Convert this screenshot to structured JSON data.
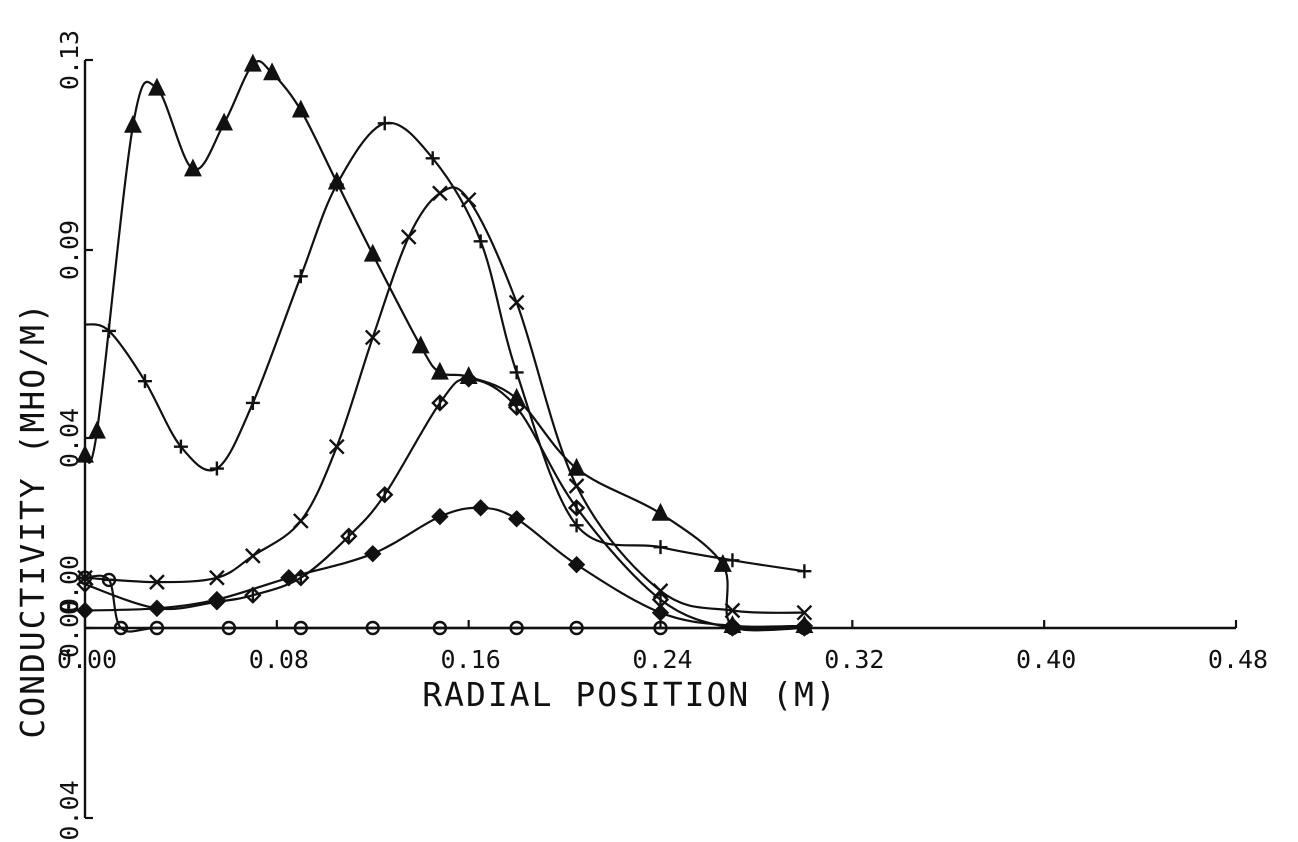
{
  "chart_data": {
    "type": "line",
    "title": "",
    "xlabel": "RADIAL POSITION (M)",
    "ylabel": "CONDUCTIVITY (MHO/M)",
    "xlim": [
      0.0,
      0.48
    ],
    "ylim": [
      -0.04,
      0.13
    ],
    "xticks": [
      "0.00",
      "0.08",
      "0.16",
      "0.24",
      "0.32",
      "0.40",
      "0.48"
    ],
    "yticks": [
      "-0.04",
      "0.00",
      "0.04",
      "0.04",
      "0.09",
      "0.13"
    ],
    "legend": "none",
    "grid": false,
    "series": [
      {
        "marker": "triangle",
        "x": [
          0.0,
          0.005,
          0.02,
          0.03,
          0.045,
          0.058,
          0.07,
          0.078,
          0.09,
          0.105,
          0.12,
          0.14,
          0.148,
          0.16,
          0.18,
          0.205,
          0.24,
          0.266,
          0.27,
          0.3
        ],
        "y": [
          0.0395,
          0.045,
          0.115,
          0.1235,
          0.105,
          0.1155,
          0.129,
          0.127,
          0.1185,
          0.102,
          0.0855,
          0.0645,
          0.0585,
          0.0575,
          0.0525,
          0.0365,
          0.0262,
          0.0145,
          0.0005,
          0.0005
        ]
      },
      {
        "marker": "plus",
        "x": [
          0.0,
          0.01,
          0.025,
          0.04,
          0.055,
          0.07,
          0.09,
          0.105,
          0.125,
          0.145,
          0.165,
          0.18,
          0.205,
          0.24,
          0.27,
          0.3
        ],
        "y": [
          0.0695,
          0.068,
          0.0565,
          0.0415,
          0.0365,
          0.0515,
          0.0805,
          0.1015,
          0.1155,
          0.1075,
          0.0885,
          0.0585,
          0.0235,
          0.0185,
          0.0155,
          0.013
        ]
      },
      {
        "marker": "x",
        "x": [
          0.0,
          0.03,
          0.055,
          0.07,
          0.09,
          0.105,
          0.12,
          0.135,
          0.148,
          0.16,
          0.18,
          0.205,
          0.24,
          0.27,
          0.3
        ],
        "y": [
          0.0115,
          0.0105,
          0.0115,
          0.0165,
          0.0245,
          0.0415,
          0.0665,
          0.0895,
          0.0995,
          0.098,
          0.0745,
          0.0325,
          0.0085,
          0.004,
          0.0035
        ]
      },
      {
        "marker": "diamond-cross",
        "x": [
          0.0,
          0.03,
          0.055,
          0.07,
          0.09,
          0.11,
          0.125,
          0.148,
          0.16,
          0.18,
          0.205,
          0.24,
          0.27,
          0.3
        ],
        "y": [
          0.01,
          0.0045,
          0.006,
          0.0075,
          0.0115,
          0.021,
          0.0305,
          0.0515,
          0.057,
          0.0505,
          0.0275,
          0.0065,
          0.0,
          0.0
        ]
      },
      {
        "marker": "diamond",
        "x": [
          0.0,
          0.03,
          0.055,
          0.085,
          0.12,
          0.148,
          0.165,
          0.18,
          0.205,
          0.24,
          0.27,
          0.3
        ],
        "y": [
          0.004,
          0.0045,
          0.0065,
          0.0115,
          0.017,
          0.0255,
          0.0275,
          0.025,
          0.0145,
          0.0035,
          0.0005,
          0.0005
        ]
      },
      {
        "marker": "circle",
        "x": [
          0.0,
          0.01,
          0.015,
          0.03,
          0.06,
          0.09,
          0.12,
          0.148,
          0.18,
          0.205,
          0.24,
          0.27,
          0.3
        ],
        "y": [
          0.0115,
          0.011,
          0.0,
          0.0,
          0.0,
          0.0,
          0.0,
          0.0,
          0.0,
          0.0,
          0.0,
          0.0,
          0.0
        ]
      }
    ]
  }
}
